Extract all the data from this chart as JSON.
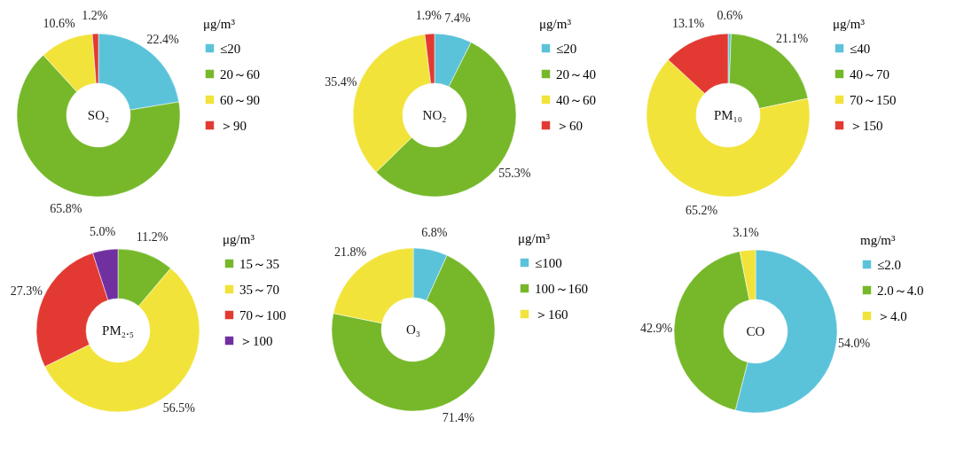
{
  "chart_data": [
    {
      "type": "donut",
      "title": "SO₂",
      "legend_title": "μg/m³",
      "legend": "right",
      "categories": [
        "≤20",
        "20～60",
        "60～90",
        "＞90"
      ],
      "values": [
        22.4,
        65.8,
        10.6,
        1.2
      ],
      "value_labels": [
        "22.4%",
        "65.8%",
        "10.6%",
        "1.2%"
      ],
      "colors": [
        "#5bc3d9",
        "#76b82a",
        "#f2e33a",
        "#e23a32"
      ]
    },
    {
      "type": "donut",
      "title": "NO₂",
      "legend_title": "μg/m³",
      "legend": "right",
      "categories": [
        "≤20",
        "20～40",
        "40～60",
        "＞60"
      ],
      "values": [
        7.4,
        55.3,
        35.4,
        1.9
      ],
      "value_labels": [
        "7.4%",
        "55.3%",
        "35.4%",
        "1.9%"
      ],
      "colors": [
        "#5bc3d9",
        "#76b82a",
        "#f2e33a",
        "#e23a32"
      ]
    },
    {
      "type": "donut",
      "title": "PM₁₀",
      "legend_title": "μg/m³",
      "legend": "right",
      "categories": [
        "≤40",
        "40～70",
        "70～150",
        "＞150"
      ],
      "values": [
        0.6,
        21.1,
        65.2,
        13.1
      ],
      "value_labels": [
        "0.6%",
        "21.1%",
        "65.2%",
        "13.1%"
      ],
      "colors": [
        "#5bc3d9",
        "#76b82a",
        "#f2e33a",
        "#e23a32"
      ]
    },
    {
      "type": "donut",
      "title": "PM₂.₅",
      "legend_title": "μg/m³",
      "legend": "right",
      "categories": [
        "15～35",
        "35～70",
        "70～100",
        "＞100"
      ],
      "values": [
        11.2,
        56.5,
        27.3,
        5.0
      ],
      "value_labels": [
        "11.2%",
        "56.5%",
        "27.3%",
        "5.0%"
      ],
      "colors": [
        "#76b82a",
        "#f2e33a",
        "#e23a32",
        "#7030a0"
      ]
    },
    {
      "type": "donut",
      "title": "O₃",
      "legend_title": "μg/m³",
      "legend": "right",
      "categories": [
        "≤100",
        "100～160",
        "＞160"
      ],
      "values": [
        6.8,
        71.4,
        21.8
      ],
      "value_labels": [
        "6.8%",
        "71.4%",
        "21.8%"
      ],
      "colors": [
        "#5bc3d9",
        "#76b82a",
        "#f2e33a"
      ]
    },
    {
      "type": "donut",
      "title": "CO",
      "legend_title": "mg/m³",
      "legend": "right",
      "categories": [
        "≤2.0",
        "2.0～4.0",
        "＞4.0"
      ],
      "values": [
        54.0,
        42.9,
        3.1
      ],
      "value_labels": [
        "54.0%",
        "42.9%",
        "3.1%"
      ],
      "colors": [
        "#5bc3d9",
        "#76b82a",
        "#f2e33a"
      ]
    }
  ]
}
